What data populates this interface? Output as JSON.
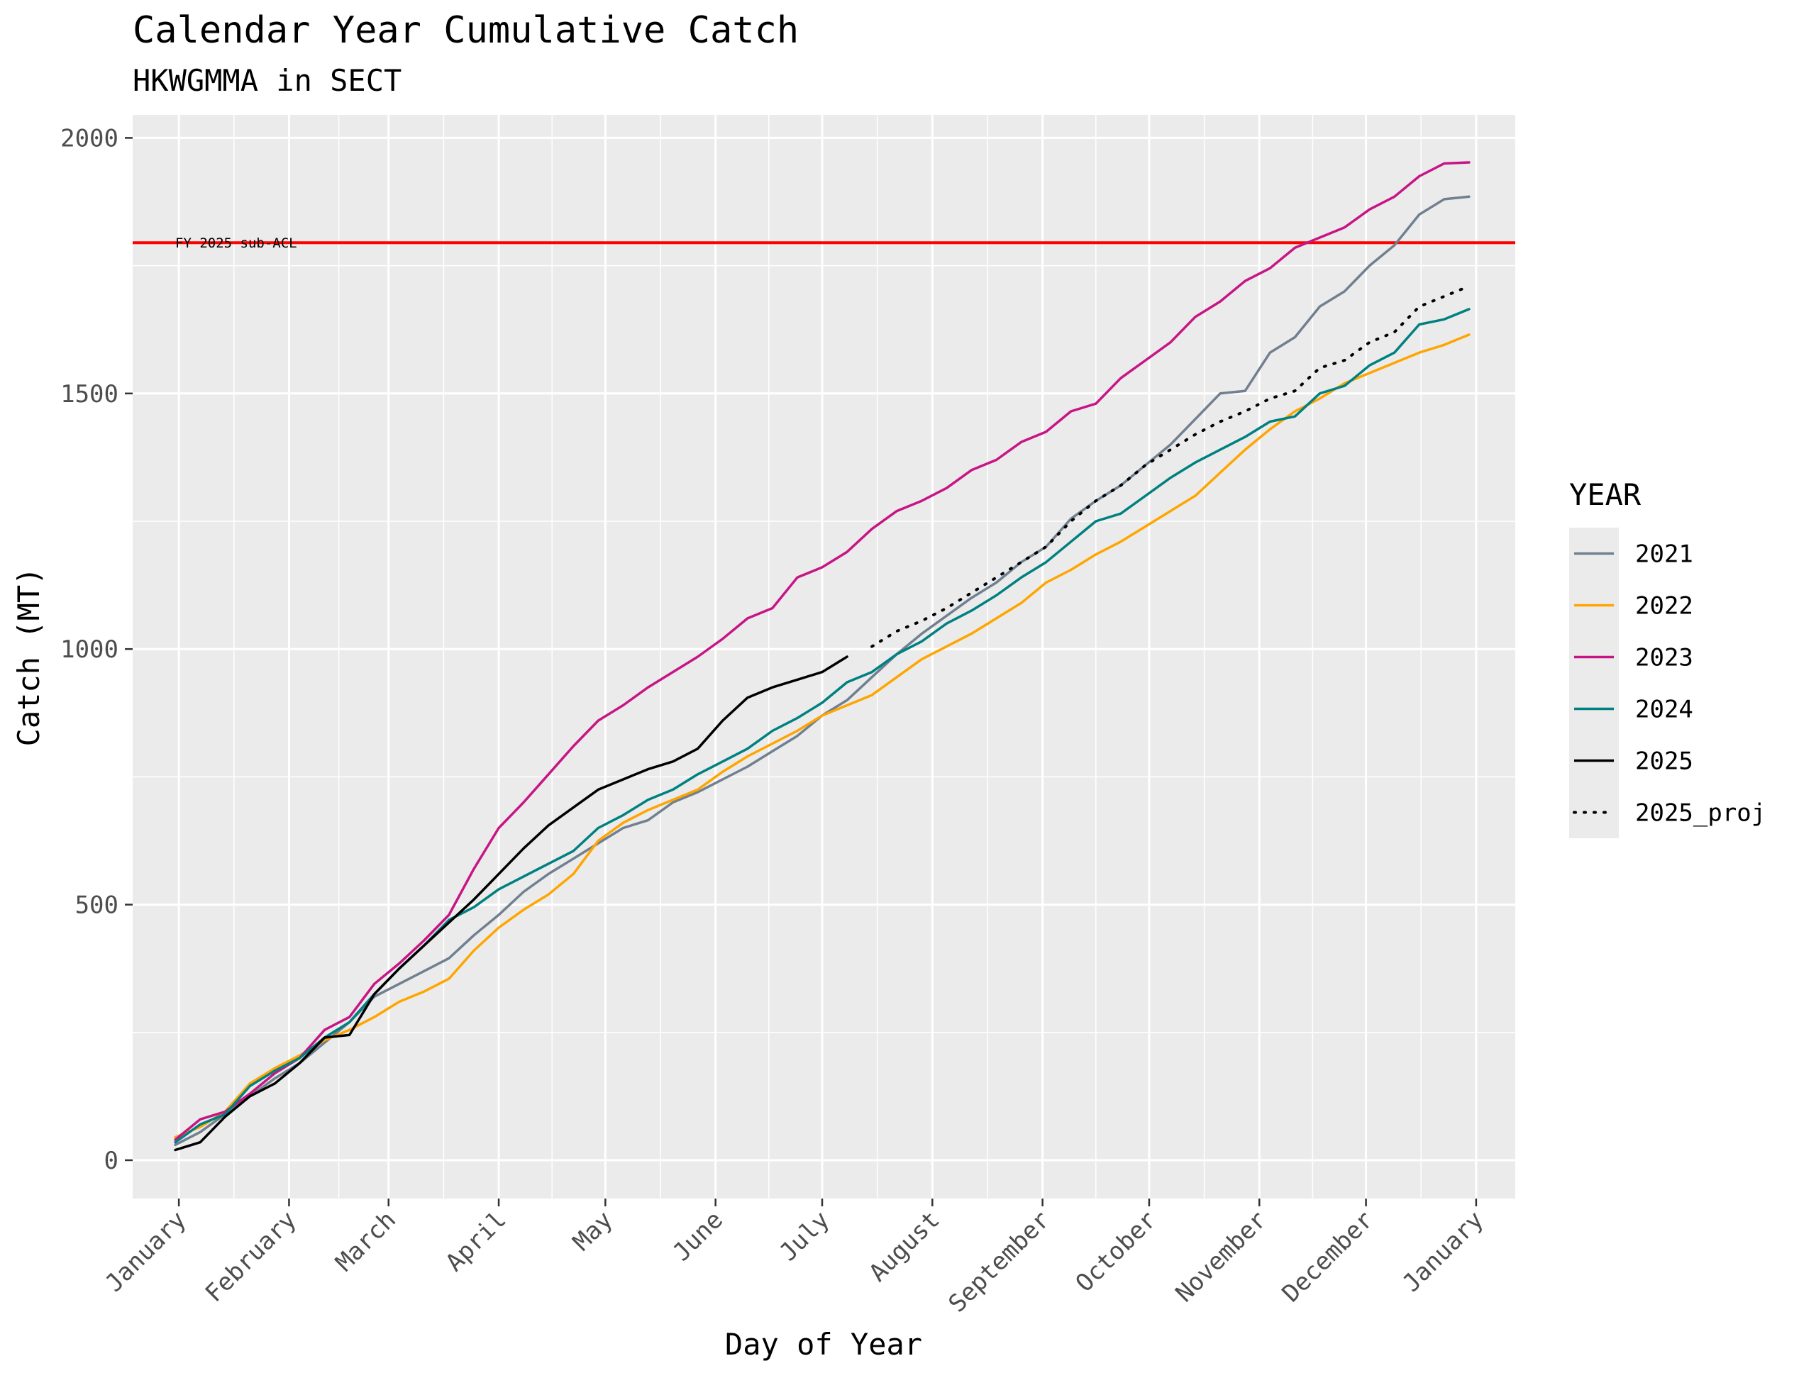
{
  "chart_data": {
    "type": "line",
    "title": "Calendar Year Cumulative Catch",
    "subtitle": "HKWGMMA in SECT",
    "xlabel": "Day of Year",
    "ylabel": "Catch (MT)",
    "xlim": [
      -12,
      377
    ],
    "ylim": [
      -75,
      2045
    ],
    "grid": true,
    "legend_position": "right",
    "legend_title": "YEAR",
    "x_ticks": [
      {
        "label": "January",
        "day": 1
      },
      {
        "label": "February",
        "day": 32
      },
      {
        "label": "March",
        "day": 60
      },
      {
        "label": "April",
        "day": 91
      },
      {
        "label": "May",
        "day": 121
      },
      {
        "label": "June",
        "day": 152
      },
      {
        "label": "July",
        "day": 182
      },
      {
        "label": "August",
        "day": 213
      },
      {
        "label": "September",
        "day": 244
      },
      {
        "label": "October",
        "day": 274
      },
      {
        "label": "November",
        "day": 305
      },
      {
        "label": "December",
        "day": 335
      },
      {
        "label": "January",
        "day": 366
      }
    ],
    "y_ticks": [
      0,
      500,
      1000,
      1500,
      2000
    ],
    "reference_line": {
      "label": "FY 2025 sub-ACL",
      "value": 1795,
      "color": "#ff0000"
    },
    "series": [
      {
        "name": "2021",
        "color": "#708090",
        "dash": "solid",
        "x": [
          0,
          7,
          14,
          21,
          28,
          35,
          42,
          49,
          56,
          63,
          70,
          77,
          84,
          91,
          98,
          105,
          112,
          119,
          126,
          133,
          140,
          147,
          154,
          161,
          168,
          175,
          182,
          189,
          196,
          203,
          210,
          217,
          224,
          231,
          238,
          245,
          252,
          259,
          266,
          273,
          280,
          287,
          294,
          301,
          308,
          315,
          322,
          329,
          336,
          343,
          350,
          357,
          364
        ],
        "y": [
          30,
          55,
          90,
          125,
          160,
          190,
          230,
          270,
          320,
          345,
          370,
          395,
          440,
          480,
          525,
          560,
          590,
          620,
          650,
          665,
          700,
          720,
          745,
          770,
          800,
          830,
          870,
          900,
          945,
          990,
          1030,
          1065,
          1100,
          1130,
          1170,
          1200,
          1255,
          1290,
          1320,
          1360,
          1400,
          1450,
          1500,
          1505,
          1580,
          1610,
          1670,
          1700,
          1750,
          1790,
          1850,
          1880,
          1885
        ]
      },
      {
        "name": "2022",
        "color": "#ffa500",
        "dash": "solid",
        "x": [
          0,
          7,
          14,
          21,
          28,
          35,
          42,
          49,
          56,
          63,
          70,
          77,
          84,
          91,
          98,
          105,
          112,
          119,
          126,
          133,
          140,
          147,
          154,
          161,
          168,
          175,
          182,
          189,
          196,
          203,
          210,
          217,
          224,
          231,
          238,
          245,
          252,
          259,
          266,
          273,
          280,
          287,
          294,
          301,
          308,
          315,
          322,
          329,
          336,
          343,
          350,
          357,
          364
        ],
        "y": [
          45,
          65,
          95,
          150,
          180,
          205,
          235,
          255,
          280,
          310,
          330,
          355,
          410,
          455,
          490,
          520,
          560,
          625,
          660,
          685,
          705,
          725,
          760,
          790,
          815,
          840,
          870,
          890,
          910,
          945,
          980,
          1005,
          1030,
          1060,
          1090,
          1130,
          1155,
          1185,
          1210,
          1240,
          1270,
          1300,
          1345,
          1390,
          1430,
          1465,
          1490,
          1520,
          1540,
          1560,
          1580,
          1595,
          1615
        ]
      },
      {
        "name": "2023",
        "color": "#c71585",
        "dash": "solid",
        "x": [
          0,
          7,
          14,
          21,
          28,
          35,
          42,
          49,
          56,
          63,
          70,
          77,
          84,
          91,
          98,
          105,
          112,
          119,
          126,
          133,
          140,
          147,
          154,
          161,
          168,
          175,
          182,
          189,
          196,
          203,
          210,
          217,
          224,
          231,
          238,
          245,
          252,
          259,
          266,
          273,
          280,
          287,
          294,
          301,
          308,
          315,
          322,
          329,
          336,
          343,
          350,
          357,
          364
        ],
        "y": [
          40,
          80,
          95,
          130,
          170,
          200,
          255,
          280,
          345,
          385,
          430,
          480,
          570,
          650,
          700,
          755,
          810,
          860,
          890,
          925,
          955,
          985,
          1020,
          1060,
          1080,
          1140,
          1160,
          1190,
          1235,
          1270,
          1290,
          1315,
          1350,
          1370,
          1405,
          1425,
          1465,
          1480,
          1530,
          1565,
          1600,
          1650,
          1680,
          1720,
          1745,
          1785,
          1805,
          1825,
          1860,
          1885,
          1925,
          1950,
          1952
        ]
      },
      {
        "name": "2024",
        "color": "#008080",
        "dash": "solid",
        "x": [
          0,
          7,
          14,
          21,
          28,
          35,
          42,
          49,
          56,
          63,
          70,
          77,
          84,
          91,
          98,
          105,
          112,
          119,
          126,
          133,
          140,
          147,
          154,
          161,
          168,
          175,
          182,
          189,
          196,
          203,
          210,
          217,
          224,
          231,
          238,
          245,
          252,
          259,
          266,
          273,
          280,
          287,
          294,
          301,
          308,
          315,
          322,
          329,
          336,
          343,
          350,
          357,
          364
        ],
        "y": [
          35,
          70,
          90,
          145,
          175,
          200,
          240,
          270,
          325,
          375,
          420,
          470,
          495,
          530,
          555,
          580,
          605,
          650,
          675,
          705,
          725,
          755,
          780,
          805,
          840,
          865,
          895,
          935,
          955,
          990,
          1015,
          1050,
          1075,
          1105,
          1140,
          1170,
          1210,
          1250,
          1265,
          1300,
          1335,
          1365,
          1390,
          1415,
          1445,
          1455,
          1500,
          1515,
          1555,
          1580,
          1635,
          1645,
          1665
        ]
      },
      {
        "name": "2025",
        "color": "#000000",
        "dash": "solid",
        "x": [
          0,
          7,
          14,
          21,
          28,
          35,
          42,
          49,
          56,
          63,
          70,
          77,
          84,
          91,
          98,
          105,
          112,
          119,
          126,
          133,
          140,
          147,
          154,
          161,
          168,
          175,
          182,
          189
        ],
        "y": [
          20,
          35,
          85,
          125,
          150,
          190,
          240,
          245,
          325,
          375,
          420,
          465,
          510,
          560,
          610,
          655,
          690,
          725,
          745,
          765,
          780,
          805,
          860,
          905,
          925,
          940,
          955,
          985
        ]
      },
      {
        "name": "2025_proj",
        "color": "#000000",
        "dash": "dotted",
        "x": [
          196,
          203,
          210,
          217,
          224,
          231,
          238,
          245,
          252,
          259,
          266,
          273,
          280,
          287,
          294,
          301,
          308,
          315,
          322,
          329,
          336,
          343,
          350,
          357,
          364
        ],
        "y": [
          1005,
          1035,
          1055,
          1080,
          1110,
          1140,
          1170,
          1200,
          1250,
          1290,
          1320,
          1360,
          1390,
          1420,
          1445,
          1465,
          1490,
          1505,
          1550,
          1565,
          1600,
          1620,
          1670,
          1690,
          1710
        ]
      }
    ]
  }
}
